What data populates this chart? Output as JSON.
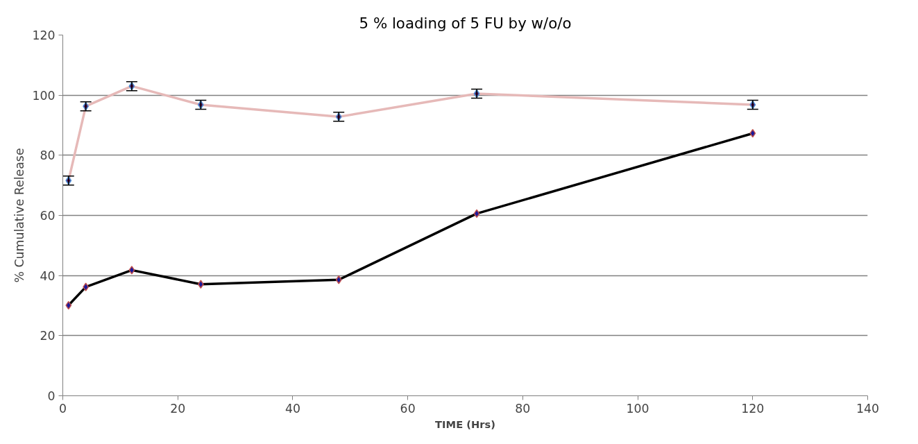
{
  "chart_data": {
    "type": "line",
    "title": "5 % loading of 5 FU by w/o/o",
    "xlabel": "TIME (Hrs)",
    "ylabel": "% Cumulative Release",
    "x": [
      1,
      4,
      12,
      24,
      48,
      72,
      120
    ],
    "series": [
      {
        "color": "#e6b9b8",
        "values": [
          71.6,
          96.3,
          103,
          96.8,
          92.8,
          100.5,
          96.8
        ],
        "errors": [
          1.5,
          1.5,
          1.5,
          1.5,
          1.5,
          1.5,
          1.5
        ]
      },
      {
        "color": "#000000",
        "values": [
          30.1,
          36.2,
          41.8,
          37.1,
          38.6,
          60.6,
          87.3
        ]
      }
    ],
    "xlim": [
      0,
      140
    ],
    "xticks": [
      0,
      20,
      40,
      60,
      80,
      100,
      120,
      140
    ],
    "ylim": [
      0,
      120
    ],
    "yticks": [
      0,
      20,
      40,
      60,
      80,
      100,
      120
    ],
    "grid": "y",
    "marker": "diamond",
    "line_style": "solid"
  }
}
